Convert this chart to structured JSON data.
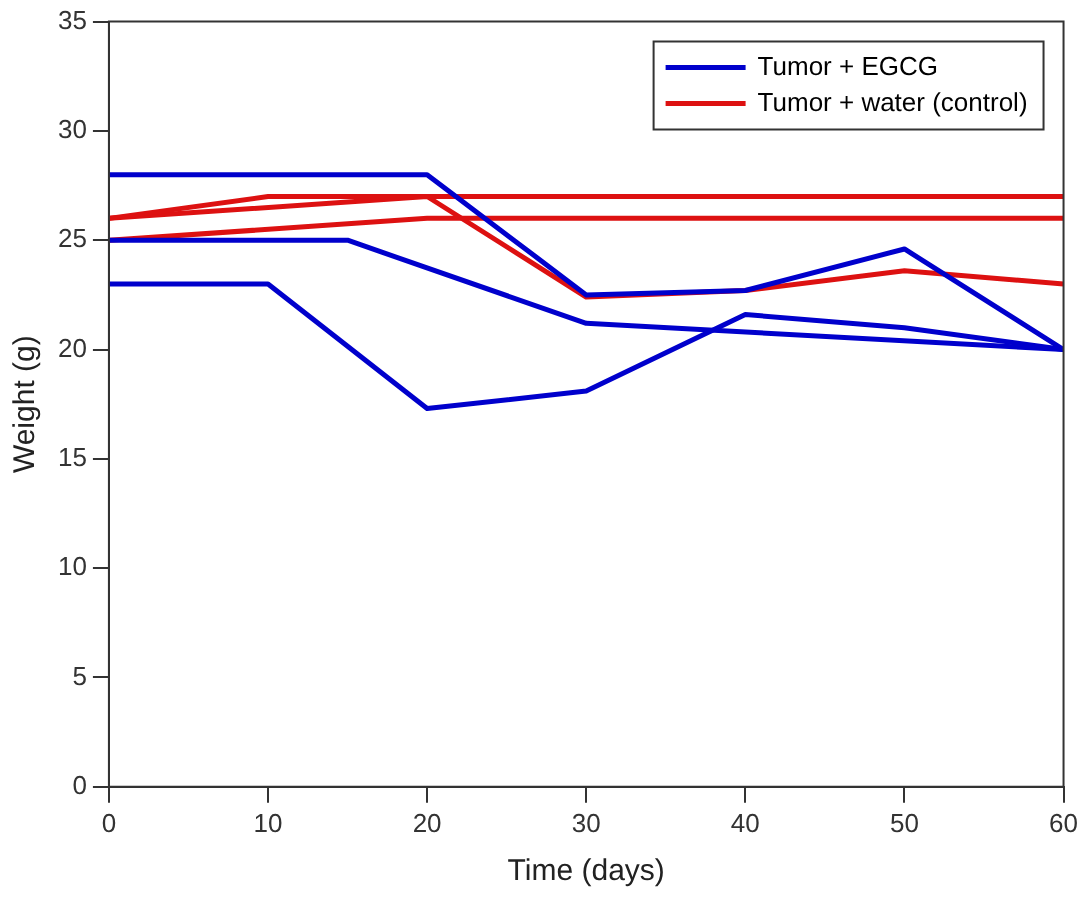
{
  "chart_data": {
    "type": "line",
    "xlabel": "Time (days)",
    "ylabel": "Weight (g)",
    "xlim": [
      0,
      60
    ],
    "xticks": [
      0,
      10,
      20,
      30,
      40,
      50,
      60
    ],
    "ylim": [
      0,
      35
    ],
    "yticks": [
      0,
      5,
      10,
      15,
      20,
      25,
      30,
      35
    ],
    "grid": false,
    "legend": "top right",
    "marker": "none",
    "line_style": "solid",
    "series": [
      {
        "name": "Tumor + EGCG",
        "color": "#0000cc",
        "x": [
          0,
          20,
          30,
          40,
          50,
          60
        ],
        "values": [
          28,
          28,
          22.5,
          22.7,
          24.6,
          20
        ]
      },
      {
        "name": "Tumor + water (control)",
        "color": "#dd1111",
        "x": [
          0,
          10,
          60
        ],
        "values": [
          26,
          27,
          27
        ]
      },
      {
        "color": "#0000cc",
        "x": [
          0,
          15,
          30,
          60
        ],
        "values": [
          25,
          25,
          21.2,
          20
        ]
      },
      {
        "color": "#0000cc",
        "x": [
          0,
          10,
          20,
          30,
          40,
          50,
          60
        ],
        "values": [
          23,
          23,
          17.3,
          18.1,
          21.6,
          21,
          20
        ]
      },
      {
        "color": "#dd1111",
        "x": [
          0,
          20,
          60
        ],
        "values": [
          25,
          26,
          26
        ]
      },
      {
        "color": "#dd1111",
        "x": [
          0,
          20,
          30,
          40,
          50,
          60
        ],
        "values": [
          26,
          27,
          22.4,
          22.7,
          23.6,
          23
        ]
      }
    ]
  }
}
